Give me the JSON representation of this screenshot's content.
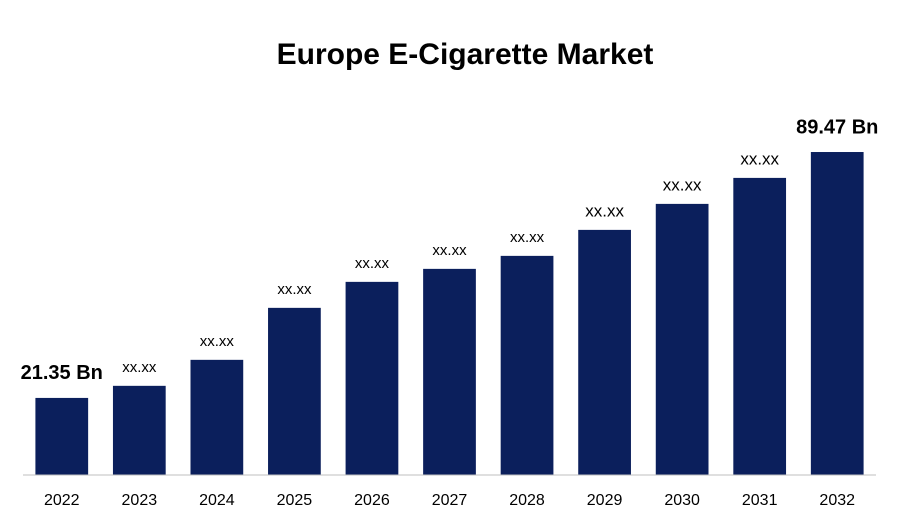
{
  "chart_data": {
    "type": "bar",
    "title": "Europe E-Cigarette Market",
    "categories": [
      "2022",
      "2023",
      "2024",
      "2025",
      "2026",
      "2027",
      "2028",
      "2029",
      "2030",
      "2031",
      "2032"
    ],
    "values": [
      21.35,
      24.7,
      31.9,
      46.3,
      53.5,
      57.1,
      60.7,
      67.9,
      75.1,
      82.3,
      89.47
    ],
    "value_labels": [
      "21.35 Bn",
      "xx.xx",
      "xx.xx",
      "xx.xx",
      "xx.xx",
      "xx.xx",
      "xx.xx",
      "xx.xx",
      "xx.xx",
      "xx.xx",
      "89.47 Bn"
    ],
    "color": "#0b1f5c",
    "ylim": [
      0,
      100
    ]
  }
}
